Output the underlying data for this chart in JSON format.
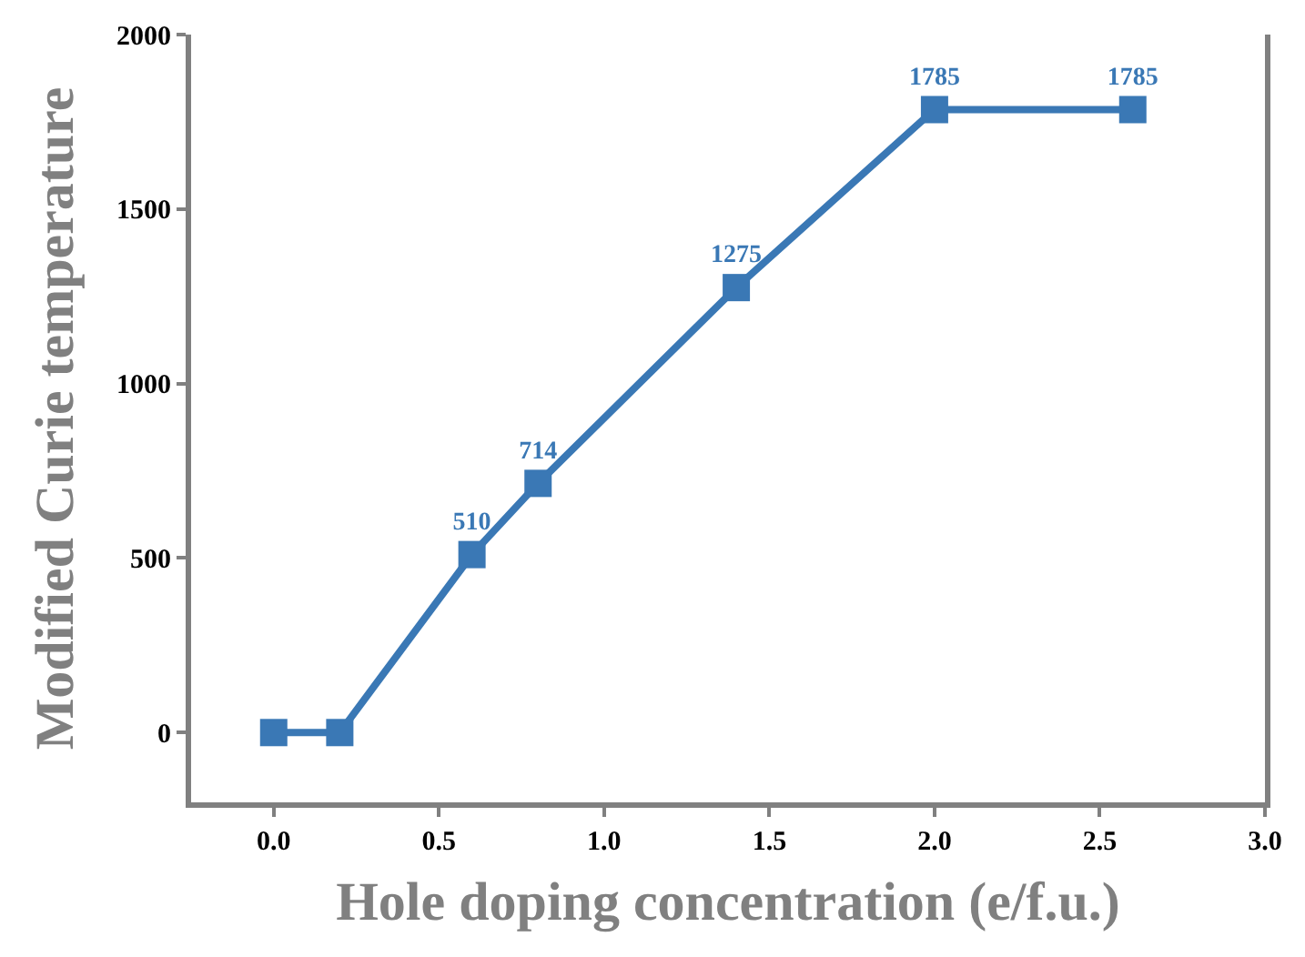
{
  "chart_data": {
    "type": "line",
    "xlabel": "Hole doping concentration (e/f.u.)",
    "ylabel": "Modified Curie temperature",
    "x": [
      0.0,
      0.2,
      0.6,
      0.8,
      1.4,
      2.0,
      2.6
    ],
    "series": [
      {
        "color": "#3a78b5",
        "values": [
          0,
          0,
          510,
          714,
          1275,
          1785,
          1785
        ],
        "value_labels": [
          null,
          null,
          "510",
          "714",
          "1275",
          "1785",
          "1785"
        ]
      }
    ],
    "xlim": [
      -0.25,
      3.0
    ],
    "xticks": [
      {
        "value": 0,
        "label": "0.0"
      },
      {
        "value": 0.5,
        "label": "0.5"
      },
      {
        "value": 1,
        "label": "1.0"
      },
      {
        "value": 1.5,
        "label": "1.5"
      },
      {
        "value": 2,
        "label": "2.0"
      },
      {
        "value": 2.5,
        "label": "2.5"
      },
      {
        "value": 3,
        "label": "3.0"
      }
    ],
    "ylim": [
      -200,
      2000
    ],
    "yticks": [
      0,
      500,
      1000,
      1500,
      2000
    ],
    "marker": "square",
    "line_style": "solid",
    "legend": false
  }
}
